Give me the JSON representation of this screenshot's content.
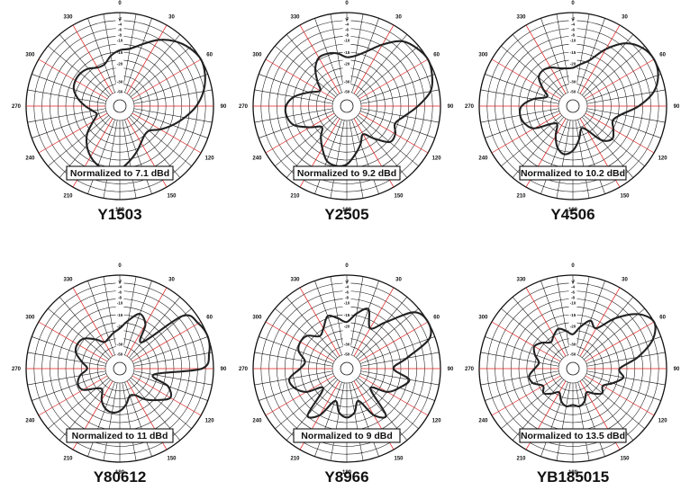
{
  "colors": {
    "grid": "#111111",
    "radial_accent": "#e01b1b",
    "pattern_line": "#222222",
    "background": "#ffffff"
  },
  "angle_labels": [
    "0",
    "30",
    "60",
    "90",
    "120",
    "150",
    "180",
    "210",
    "240",
    "270",
    "300",
    "330"
  ],
  "db_scale_labels": [
    "0",
    "-2",
    "-4",
    "-6",
    "-8",
    "-10",
    "-15",
    "-20",
    "-30",
    "-50"
  ],
  "plots": [
    {
      "model": "Y1503",
      "normalization": "Normalized to 7.1 dBd",
      "pattern_db": [
        -14,
        -13,
        -10,
        -6,
        -3,
        -1,
        0,
        -1,
        -3,
        -6,
        -10,
        -14,
        -18,
        -22,
        -22,
        -20,
        -17,
        -14,
        -11,
        -10,
        -11,
        -13,
        -16,
        -20,
        -26,
        -30,
        -28,
        -24,
        -20,
        -17,
        -16,
        -16,
        -17,
        -19,
        -19,
        -16
      ]
    },
    {
      "model": "Y2505",
      "normalization": "Normalized to 9.2 dBd",
      "pattern_db": [
        -17,
        -16,
        -13,
        -8,
        -3,
        -1,
        0,
        -1,
        -3,
        -8,
        -13,
        -16,
        -14,
        -14,
        -20,
        -25,
        -21,
        -17,
        -13,
        -12,
        -13,
        -17,
        -21,
        -25,
        -20,
        -14,
        -12,
        -12,
        -15,
        -21,
        -26,
        -22,
        -17,
        -14,
        -14,
        -15
      ]
    },
    {
      "model": "Y4506",
      "normalization": "Normalized to 10.2 dBd",
      "pattern_db": [
        -22,
        -20,
        -17,
        -10,
        -4,
        -1,
        0,
        -1,
        -4,
        -10,
        -17,
        -20,
        -18,
        -16,
        -19,
        -28,
        -30,
        -24,
        -19,
        -17,
        -19,
        -24,
        -30,
        -28,
        -19,
        -16,
        -15,
        -16,
        -21,
        -28,
        -24,
        -19,
        -18,
        -19,
        -21,
        -22
      ]
    },
    {
      "model": "Y80612",
      "normalization": "Normalized to 11 dBd",
      "pattern_db": [
        -21,
        -17,
        -13,
        -16,
        -24,
        -4,
        -1,
        0,
        -1,
        -4,
        -24,
        -16,
        -13,
        -17,
        -21,
        -26,
        -27,
        -23,
        -20,
        -19,
        -20,
        -23,
        -28,
        -26,
        -20,
        -19,
        -21,
        -25,
        -22,
        -18,
        -17,
        -18,
        -22,
        -26,
        -25,
        -23
      ]
    },
    {
      "model": "Y8966",
      "normalization": "Normalized to 9 dBd",
      "pattern_db": [
        -18,
        -14,
        -11,
        -18,
        -12,
        -2,
        0,
        -2,
        -12,
        -18,
        -11,
        -14,
        -18,
        -26,
        -12,
        -15,
        -24,
        -19,
        -17,
        -19,
        -24,
        -15,
        -12,
        -26,
        -18,
        -14,
        -13,
        -18,
        -20,
        -16,
        -15,
        -16,
        -20,
        -18,
        -14,
        -16
      ]
    },
    {
      "model": "YB185015",
      "normalization": "Normalized to 13.5 dBd",
      "pattern_db": [
        -24,
        -20,
        -16,
        -18,
        -10,
        -3,
        0,
        -3,
        -10,
        -18,
        -16,
        -20,
        -24,
        -22,
        -25,
        -28,
        -24,
        -22,
        -23,
        -22,
        -24,
        -28,
        -25,
        -22,
        -24,
        -20,
        -19,
        -22,
        -24,
        -21,
        -19,
        -21,
        -24,
        -22,
        -20,
        -22
      ]
    }
  ]
}
